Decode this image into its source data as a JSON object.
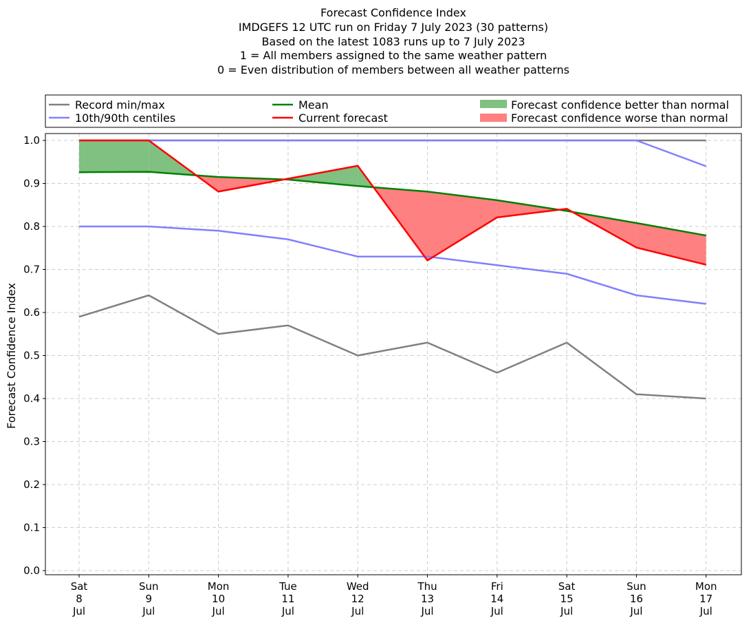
{
  "chart_data": {
    "type": "line",
    "title_lines": [
      "Forecast Confidence Index",
      "IMDGEFS 12 UTC run on Friday 7 July 2023 (30 patterns)",
      "Based on the latest 1083 runs up to 7 July 2023",
      "1 = All members assigned to the same weather pattern",
      "0 = Even distribution of members between all weather patterns"
    ],
    "ylabel": "Forecast Confidence Index",
    "ylim": [
      0.0,
      1.0
    ],
    "yticks": [
      "0.0",
      "0.1",
      "0.2",
      "0.3",
      "0.4",
      "0.5",
      "0.6",
      "0.7",
      "0.8",
      "0.9",
      "1.0"
    ],
    "grid": true,
    "categories": [
      [
        "Sat",
        "8",
        "Jul"
      ],
      [
        "Sun",
        "9",
        "Jul"
      ],
      [
        "Mon",
        "10",
        "Jul"
      ],
      [
        "Tue",
        "11",
        "Jul"
      ],
      [
        "Wed",
        "12",
        "Jul"
      ],
      [
        "Thu",
        "13",
        "Jul"
      ],
      [
        "Fri",
        "14",
        "Jul"
      ],
      [
        "Sat",
        "15",
        "Jul"
      ],
      [
        "Sun",
        "16",
        "Jul"
      ],
      [
        "Mon",
        "17",
        "Jul"
      ]
    ],
    "series": {
      "record_min": [
        0.59,
        0.64,
        0.55,
        0.57,
        0.5,
        0.53,
        0.46,
        0.53,
        0.41,
        0.4
      ],
      "record_max": [
        1.0,
        1.0,
        1.0,
        1.0,
        1.0,
        1.0,
        1.0,
        1.0,
        1.0,
        1.0
      ],
      "p10": [
        0.8,
        0.8,
        0.79,
        0.77,
        0.73,
        0.73,
        0.71,
        0.69,
        0.64,
        0.62
      ],
      "p90": [
        1.0,
        1.0,
        1.0,
        1.0,
        1.0,
        1.0,
        1.0,
        1.0,
        1.0,
        0.94
      ],
      "mean": [
        0.926,
        0.927,
        0.915,
        0.909,
        0.894,
        0.881,
        0.861,
        0.836,
        0.808,
        0.779
      ],
      "current": [
        1.0,
        1.0,
        0.881,
        0.911,
        0.941,
        0.721,
        0.821,
        0.841,
        0.751,
        0.711
      ]
    },
    "colors": {
      "record": "#808080",
      "centiles": "#8080ff",
      "mean": "#008000",
      "current": "#ff0000",
      "better": "#80c080",
      "worse": "#ff8080",
      "grid": "#cccccc"
    },
    "legend": {
      "placement": "top",
      "record": "Record min/max",
      "centiles": "10th/90th centiles",
      "mean": "Mean",
      "current": "Current forecast",
      "better": "Forecast confidence better than normal",
      "worse": "Forecast confidence worse than normal"
    }
  }
}
